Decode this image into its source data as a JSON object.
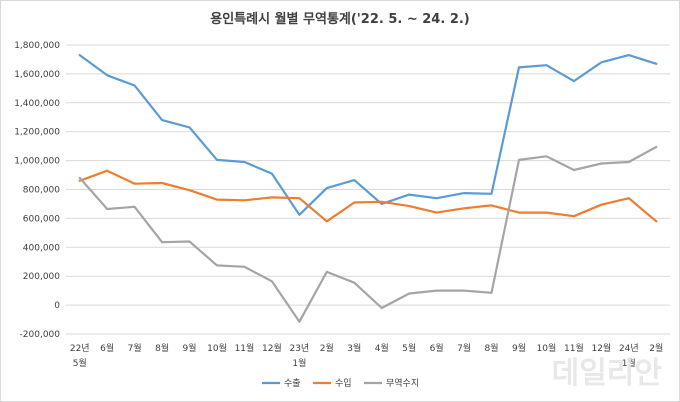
{
  "chart_data": {
    "type": "line",
    "title": "용인특례시 월별 무역통계('22. 5. ~ 24. 2.)",
    "categories": [
      [
        "22년",
        "5월"
      ],
      [
        "6월"
      ],
      [
        "7월"
      ],
      [
        "8월"
      ],
      [
        "9월"
      ],
      [
        "10월"
      ],
      [
        "11월"
      ],
      [
        "12월"
      ],
      [
        "23년",
        "1월"
      ],
      [
        "2월"
      ],
      [
        "3월"
      ],
      [
        "4월"
      ],
      [
        "5월"
      ],
      [
        "6월"
      ],
      [
        "7월"
      ],
      [
        "8월"
      ],
      [
        "9월"
      ],
      [
        "10월"
      ],
      [
        "11월"
      ],
      [
        "12월"
      ],
      [
        "24년",
        "1월"
      ],
      [
        "2월"
      ]
    ],
    "ylim": [
      -200000,
      1800000
    ],
    "yticks": [
      -200000,
      0,
      200000,
      400000,
      600000,
      800000,
      1000000,
      1200000,
      1400000,
      1600000,
      1800000
    ],
    "ytick_labels": [
      "-200,000",
      "0",
      "200,000",
      "400,000",
      "600,000",
      "800,000",
      "1,000,000",
      "1,200,000",
      "1,400,000",
      "1,600,000",
      "1,800,000"
    ],
    "grid": true,
    "legend_position": "bottom",
    "series": [
      {
        "name": "수출",
        "color": "#5b9bd5",
        "values": [
          1730000,
          1590000,
          1520000,
          1280000,
          1230000,
          1005000,
          990000,
          910000,
          625000,
          810000,
          865000,
          700000,
          765000,
          740000,
          775000,
          770000,
          1645000,
          1660000,
          1550000,
          1680000,
          1730000,
          1670000
        ]
      },
      {
        "name": "수입",
        "color": "#ed7d31",
        "values": [
          860000,
          930000,
          840000,
          845000,
          795000,
          730000,
          725000,
          745000,
          740000,
          580000,
          710000,
          715000,
          685000,
          640000,
          670000,
          690000,
          640000,
          640000,
          615000,
          695000,
          740000,
          580000
        ]
      },
      {
        "name": "무역수지",
        "color": "#a5a5a5",
        "values": [
          880000,
          665000,
          680000,
          435000,
          440000,
          275000,
          265000,
          165000,
          -115000,
          230000,
          155000,
          -20000,
          80000,
          100000,
          100000,
          85000,
          1005000,
          1030000,
          935000,
          980000,
          990000,
          1095000
        ]
      }
    ]
  },
  "watermark": "데일리안"
}
